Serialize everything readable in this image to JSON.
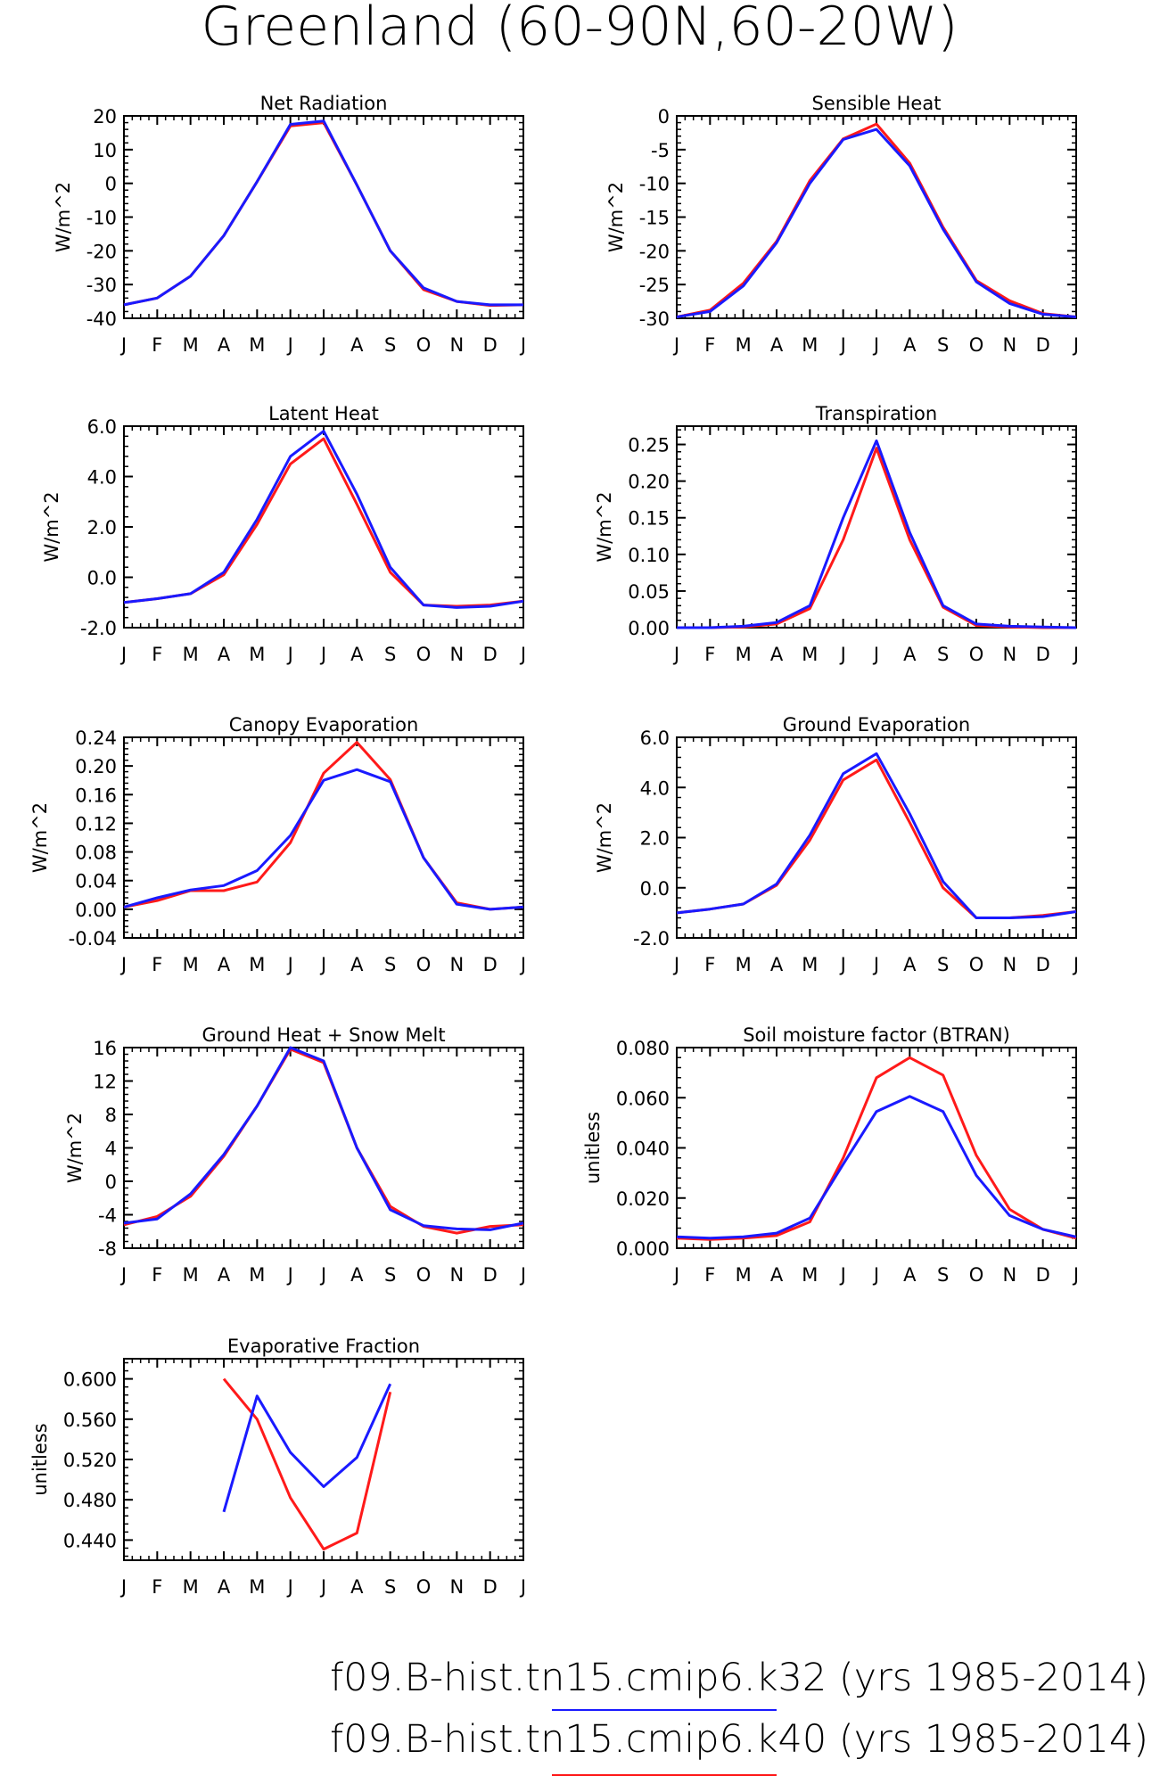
{
  "figure_title": "Greenland (60-90N,60-20W)",
  "months": [
    "J",
    "F",
    "M",
    "A",
    "M",
    "J",
    "J",
    "A",
    "S",
    "O",
    "N",
    "D",
    "J"
  ],
  "colors": {
    "k32": "#1a1aff",
    "k40": "#ff1a1a",
    "axes": "#000000"
  },
  "legend": [
    {
      "text": "f09.B-hist.tn15.cmip6.k32 (yrs 1985-2014)",
      "color": "#1a1aff"
    },
    {
      "text": "f09.B-hist.tn15.cmip6.k40 (yrs 1985-2014)",
      "color": "#ff1a1a"
    }
  ],
  "chart_data": [
    {
      "type": "line",
      "title": "Net Radiation",
      "ylabel": "W/m^2",
      "ylim": [
        -40,
        20
      ],
      "yticks": [
        -40,
        -30,
        -20,
        -10,
        0,
        10,
        20
      ],
      "ytick_labels": [
        "-40",
        "-30",
        "-20",
        "-10",
        "0",
        "10",
        "20"
      ],
      "series": [
        {
          "values": [
            -36,
            -34,
            -27.5,
            -15.5,
            0.5,
            17,
            18,
            -0.5,
            -20,
            -31.5,
            -35,
            -36.2,
            -36
          ],
          "color": "#ff1a1a"
        },
        {
          "values": [
            -36,
            -34,
            -27.5,
            -15.5,
            0.5,
            17.5,
            18.5,
            -0.5,
            -20,
            -31,
            -35,
            -36,
            -36
          ],
          "color": "#1a1aff"
        }
      ]
    },
    {
      "type": "line",
      "title": "Sensible Heat",
      "ylabel": "W/m^2",
      "ylim": [
        -30,
        0
      ],
      "yticks": [
        -30,
        -25,
        -20,
        -15,
        -10,
        -5,
        0
      ],
      "ytick_labels": [
        "-30",
        "-25",
        "-20",
        "-15",
        "-10",
        "-5",
        "0"
      ],
      "series": [
        {
          "values": [
            -29.8,
            -28.8,
            -24.8,
            -18.6,
            -9.6,
            -3.4,
            -1.2,
            -7,
            -16.5,
            -24.4,
            -27.4,
            -29.3,
            -29.8
          ],
          "color": "#ff1a1a"
        },
        {
          "values": [
            -29.8,
            -29,
            -25.2,
            -18.8,
            -10,
            -3.5,
            -2,
            -7.4,
            -16.8,
            -24.6,
            -27.8,
            -29.4,
            -29.8
          ],
          "color": "#1a1aff"
        }
      ]
    },
    {
      "type": "line",
      "title": "Latent Heat",
      "ylabel": "W/m^2",
      "ylim": [
        -2,
        6
      ],
      "yticks": [
        -2,
        0,
        2,
        4,
        6
      ],
      "ytick_labels": [
        "-2.0",
        "0.0",
        "2.0",
        "4.0",
        "6.0"
      ],
      "series": [
        {
          "values": [
            -1,
            -0.85,
            -0.65,
            0.1,
            2.1,
            4.5,
            5.5,
            2.9,
            0.2,
            -1.1,
            -1.15,
            -1.1,
            -0.95
          ],
          "color": "#ff1a1a"
        },
        {
          "values": [
            -1,
            -0.85,
            -0.65,
            0.2,
            2.3,
            4.8,
            5.8,
            3.3,
            0.4,
            -1.1,
            -1.2,
            -1.15,
            -0.95
          ],
          "color": "#1a1aff"
        }
      ]
    },
    {
      "type": "line",
      "title": "Transpiration",
      "ylabel": "W/m^2",
      "ylim": [
        0,
        0.275
      ],
      "yticks": [
        0,
        0.05,
        0.1,
        0.15,
        0.2,
        0.25
      ],
      "ytick_labels": [
        "0.00",
        "0.05",
        "0.10",
        "0.15",
        "0.20",
        "0.25"
      ],
      "series": [
        {
          "values": [
            0,
            0,
            0.001,
            0.005,
            0.026,
            0.12,
            0.245,
            0.12,
            0.028,
            0.003,
            0.001,
            0,
            0
          ],
          "color": "#ff1a1a"
        },
        {
          "values": [
            0,
            0,
            0.002,
            0.007,
            0.03,
            0.15,
            0.255,
            0.13,
            0.03,
            0.005,
            0.002,
            0.001,
            0
          ],
          "color": "#1a1aff"
        }
      ]
    },
    {
      "type": "line",
      "title": "Canopy Evaporation",
      "ylabel": "W/m^2",
      "ylim": [
        -0.04,
        0.24
      ],
      "yticks": [
        -0.04,
        0,
        0.04,
        0.08,
        0.12,
        0.16,
        0.2,
        0.24
      ],
      "ytick_labels": [
        "-0.04",
        "0.00",
        "0.04",
        "0.08",
        "0.12",
        "0.16",
        "0.20",
        "0.24"
      ],
      "series": [
        {
          "values": [
            0.003,
            0.012,
            0.026,
            0.026,
            0.038,
            0.093,
            0.19,
            0.233,
            0.181,
            0.072,
            0.009,
            0,
            0.003
          ],
          "color": "#ff1a1a"
        },
        {
          "values": [
            0.003,
            0.016,
            0.027,
            0.033,
            0.054,
            0.103,
            0.18,
            0.195,
            0.178,
            0.072,
            0.007,
            0,
            0.003
          ],
          "color": "#1a1aff"
        }
      ]
    },
    {
      "type": "line",
      "title": "Ground Evaporation",
      "ylabel": "W/m^2",
      "ylim": [
        -2,
        6
      ],
      "yticks": [
        -2,
        0,
        2,
        4,
        6
      ],
      "ytick_labels": [
        "-2.0",
        "0.0",
        "2.0",
        "4.0",
        "6.0"
      ],
      "series": [
        {
          "values": [
            -1,
            -0.85,
            -0.65,
            0.1,
            1.9,
            4.3,
            5.1,
            2.6,
            0,
            -1.2,
            -1.2,
            -1.1,
            -0.95
          ],
          "color": "#ff1a1a"
        },
        {
          "values": [
            -1,
            -0.85,
            -0.65,
            0.15,
            2.1,
            4.55,
            5.35,
            2.95,
            0.25,
            -1.2,
            -1.2,
            -1.15,
            -0.95
          ],
          "color": "#1a1aff"
        }
      ]
    },
    {
      "type": "line",
      "title": "Ground Heat + Snow Melt",
      "ylabel": "W/m^2",
      "ylim": [
        -8,
        16
      ],
      "yticks": [
        -8,
        -4,
        0,
        4,
        8,
        12,
        16
      ],
      "ytick_labels": [
        "-8",
        "-4",
        "0",
        "4",
        "8",
        "12",
        "16"
      ],
      "series": [
        {
          "values": [
            -5.2,
            -4.2,
            -1.8,
            3,
            9,
            15.8,
            14.2,
            4,
            -3,
            -5.4,
            -6.2,
            -5.4,
            -5.2
          ],
          "color": "#ff1a1a"
        },
        {
          "values": [
            -5,
            -4.5,
            -1.5,
            3.2,
            9,
            16,
            14.4,
            4,
            -3.4,
            -5.3,
            -5.7,
            -5.8,
            -5
          ],
          "color": "#1a1aff"
        }
      ]
    },
    {
      "type": "line",
      "title": "Soil moisture factor (BTRAN)",
      "ylabel": "unitless",
      "ylim": [
        0,
        0.08
      ],
      "yticks": [
        0,
        0.02,
        0.04,
        0.06,
        0.08
      ],
      "ytick_labels": [
        "0.000",
        "0.020",
        "0.040",
        "0.060",
        "0.080"
      ],
      "series": [
        {
          "values": [
            0.004,
            0.0035,
            0.004,
            0.005,
            0.0105,
            0.036,
            0.068,
            0.076,
            0.069,
            0.037,
            0.0155,
            0.0075,
            0.004
          ],
          "color": "#ff1a1a"
        },
        {
          "values": [
            0.0045,
            0.004,
            0.0045,
            0.006,
            0.012,
            0.0335,
            0.0545,
            0.0605,
            0.0545,
            0.029,
            0.013,
            0.0075,
            0.0045
          ],
          "color": "#1a1aff"
        }
      ]
    },
    {
      "type": "line",
      "title": "Evaporative Fraction",
      "ylabel": "unitless",
      "ylim": [
        0.42,
        0.62
      ],
      "yticks": [
        0.44,
        0.48,
        0.52,
        0.56,
        0.6
      ],
      "ytick_labels": [
        "0.440",
        "0.480",
        "0.520",
        "0.560",
        "0.600"
      ],
      "series": [
        {
          "values": [
            null,
            null,
            null,
            0.6,
            0.56,
            0.482,
            0.431,
            0.447,
            0.587,
            null,
            null,
            null,
            null
          ],
          "color": "#ff1a1a"
        },
        {
          "values": [
            null,
            null,
            null,
            0.468,
            0.583,
            0.527,
            0.493,
            0.522,
            0.595,
            null,
            null,
            null,
            null
          ],
          "color": "#1a1aff"
        }
      ]
    }
  ]
}
